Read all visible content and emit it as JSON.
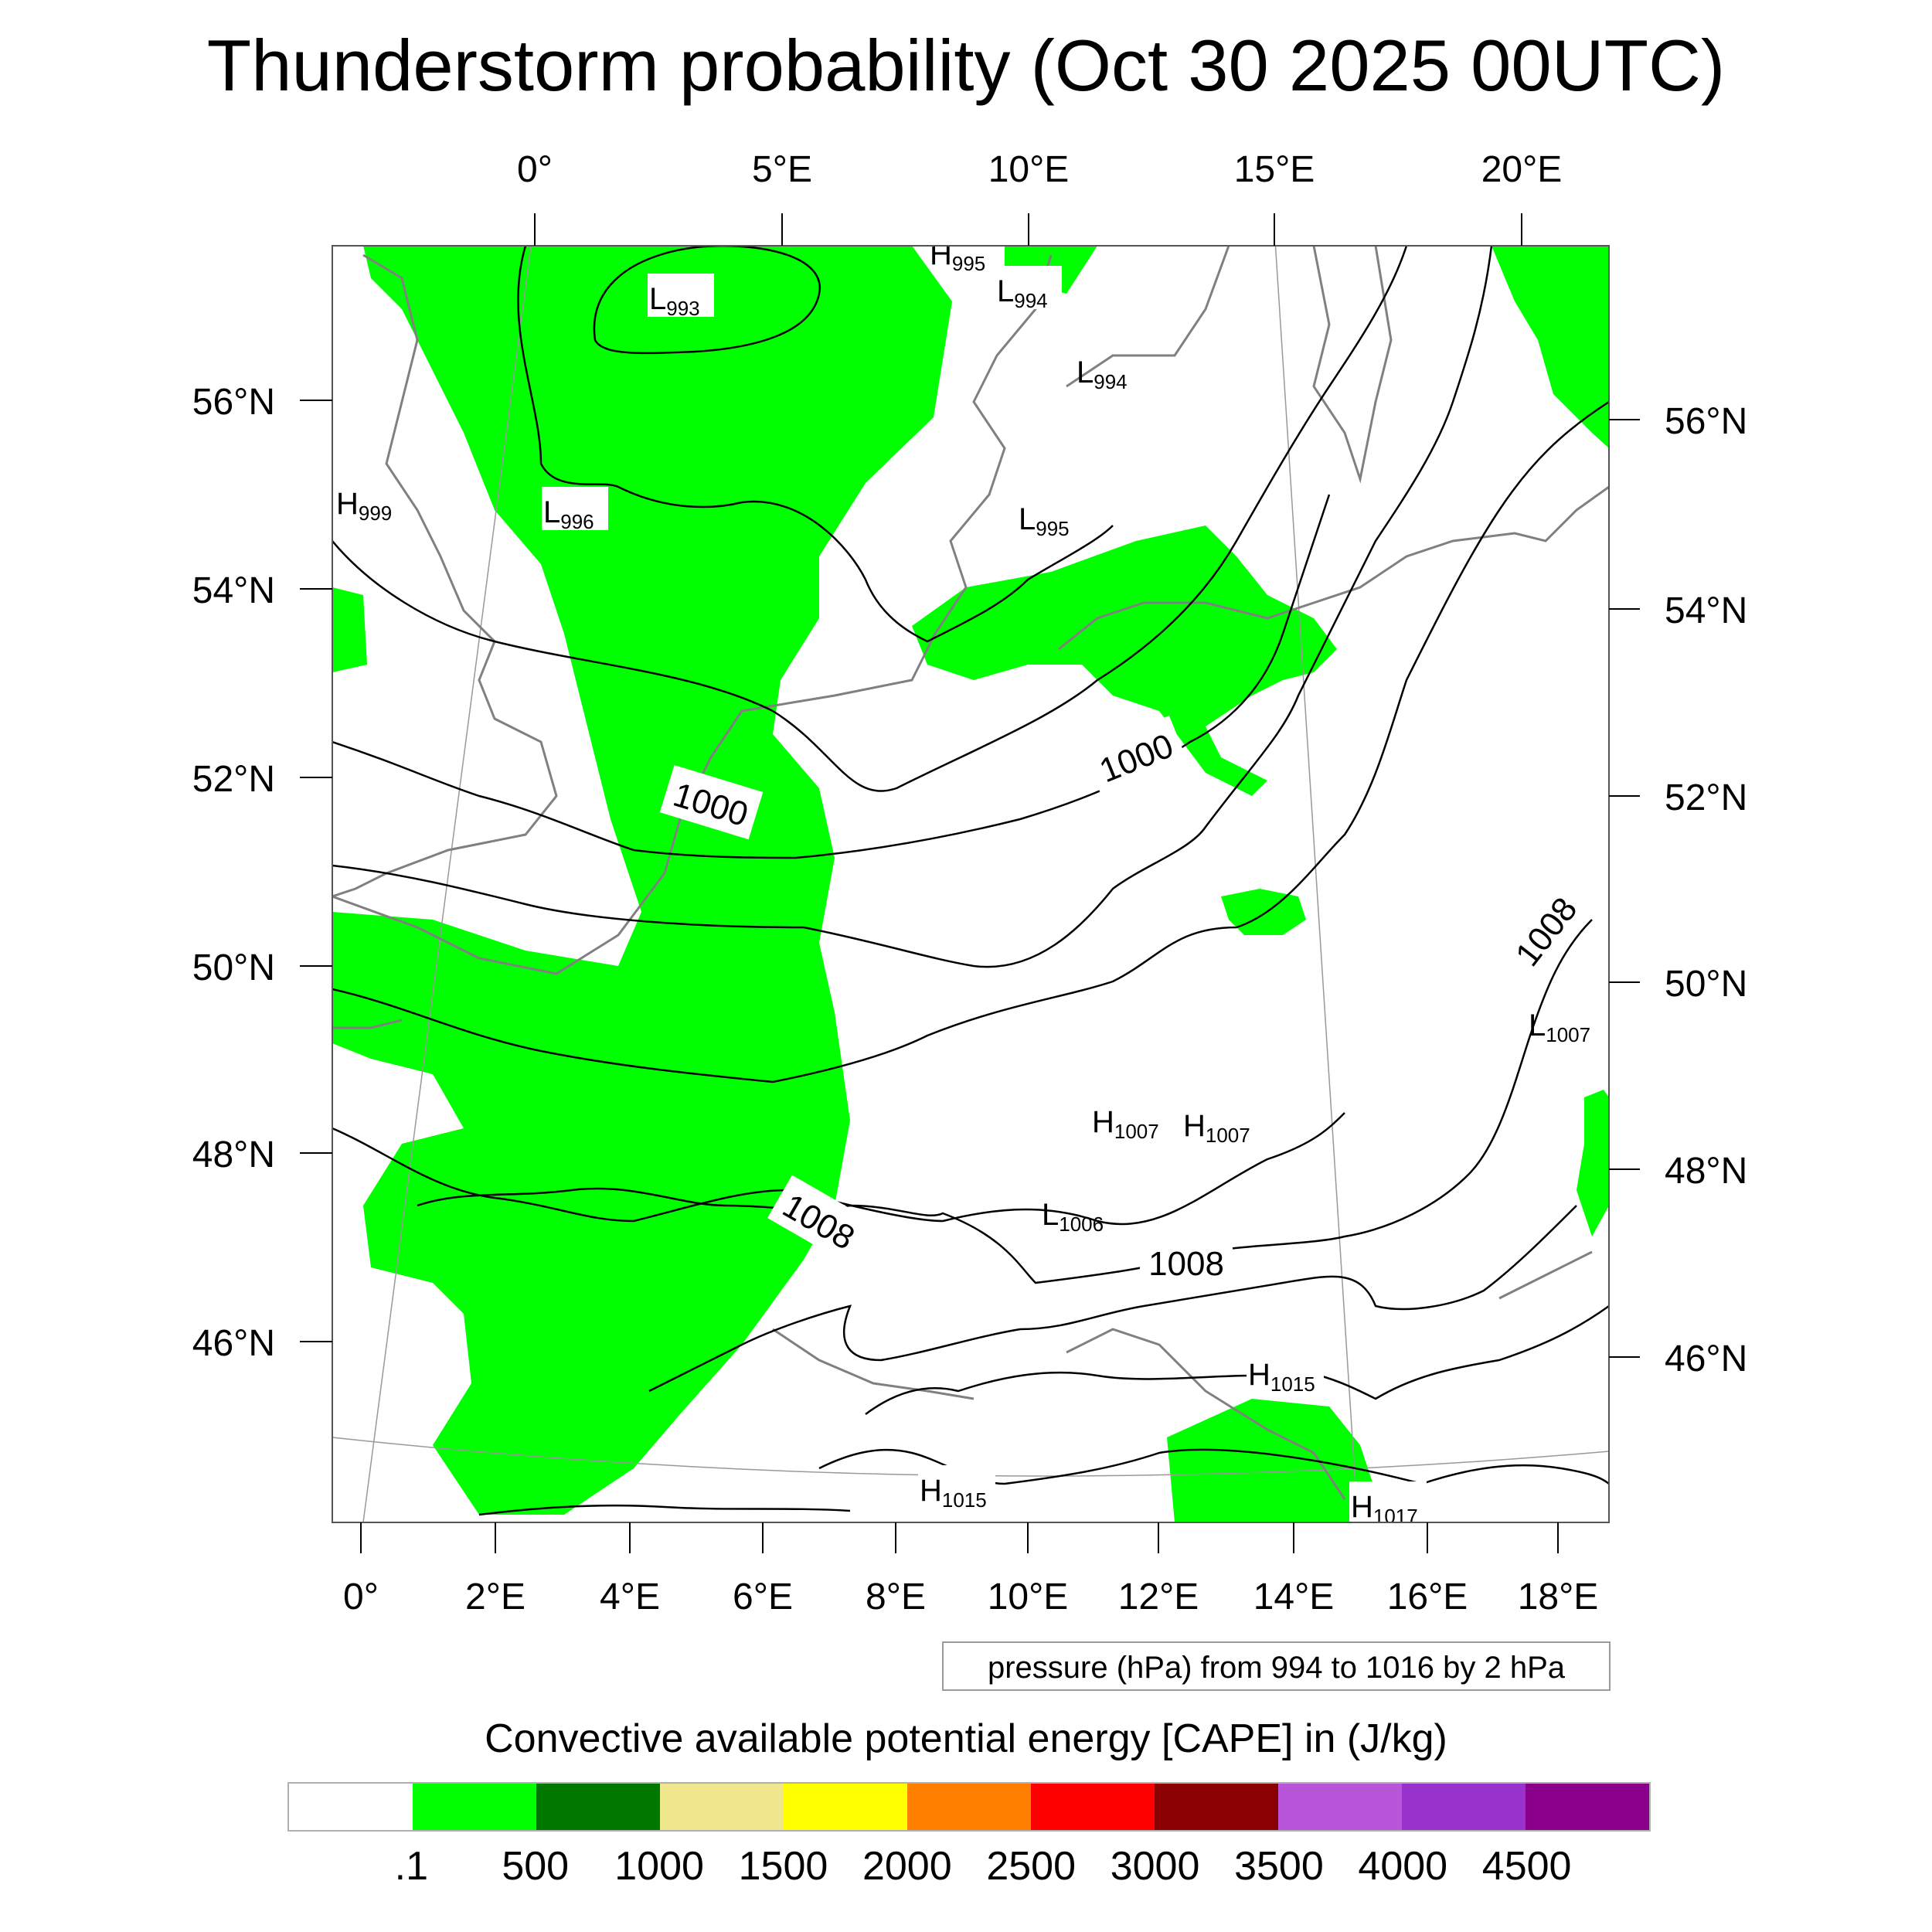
{
  "title": "Thunderstorm probability (Oct 30 2025 00UTC)",
  "top_lon_labels": [
    "0°",
    "5°E",
    "10°E",
    "15°E",
    "20°E"
  ],
  "bottom_lon_labels": [
    "0°",
    "2°E",
    "4°E",
    "6°E",
    "8°E",
    "10°E",
    "12°E",
    "14°E",
    "16°E",
    "18°E"
  ],
  "left_lat_labels": [
    "56°N",
    "54°N",
    "52°N",
    "50°N",
    "48°N",
    "46°N"
  ],
  "right_lat_labels": [
    "56°N",
    "54°N",
    "52°N",
    "50°N",
    "48°N",
    "46°N"
  ],
  "contour_line_labels": [
    "1000",
    "1000",
    "1008",
    "1008",
    "1008"
  ],
  "pressure_centers": [
    {
      "type": "L",
      "value": "993"
    },
    {
      "type": "H",
      "value": "995"
    },
    {
      "type": "L",
      "value": "994"
    },
    {
      "type": "L",
      "value": "994"
    },
    {
      "type": "H",
      "value": "999"
    },
    {
      "type": "L",
      "value": "996"
    },
    {
      "type": "L",
      "value": "995"
    },
    {
      "type": "L",
      "value": "1007"
    },
    {
      "type": "H",
      "value": "1007"
    },
    {
      "type": "H",
      "value": "1007"
    },
    {
      "type": "L",
      "value": "1006"
    },
    {
      "type": "H",
      "value": "1015"
    },
    {
      "type": "H",
      "value": "1015"
    },
    {
      "type": "H",
      "value": "1017"
    }
  ],
  "contour_note": "pressure (hPa) from 994 to 1016 by 2 hPa",
  "colorbar": {
    "title": "Convective available potential energy [CAPE] in (J/kg)",
    "colors": [
      "#ffffff",
      "#00ff00",
      "#007800",
      "#f0e68c",
      "#ffff00",
      "#ff8000",
      "#ff0000",
      "#8b0000",
      "#b955d8",
      "#9932cc",
      "#8b008b"
    ],
    "labels": [
      ".1",
      "500",
      "1000",
      "1500",
      "2000",
      "2500",
      "3000",
      "3500",
      "4000",
      "4500"
    ]
  },
  "colors": {
    "cape_fill": "#00ff00",
    "coastline": "#808080",
    "isobar": "#000000",
    "grid": "#999999"
  }
}
